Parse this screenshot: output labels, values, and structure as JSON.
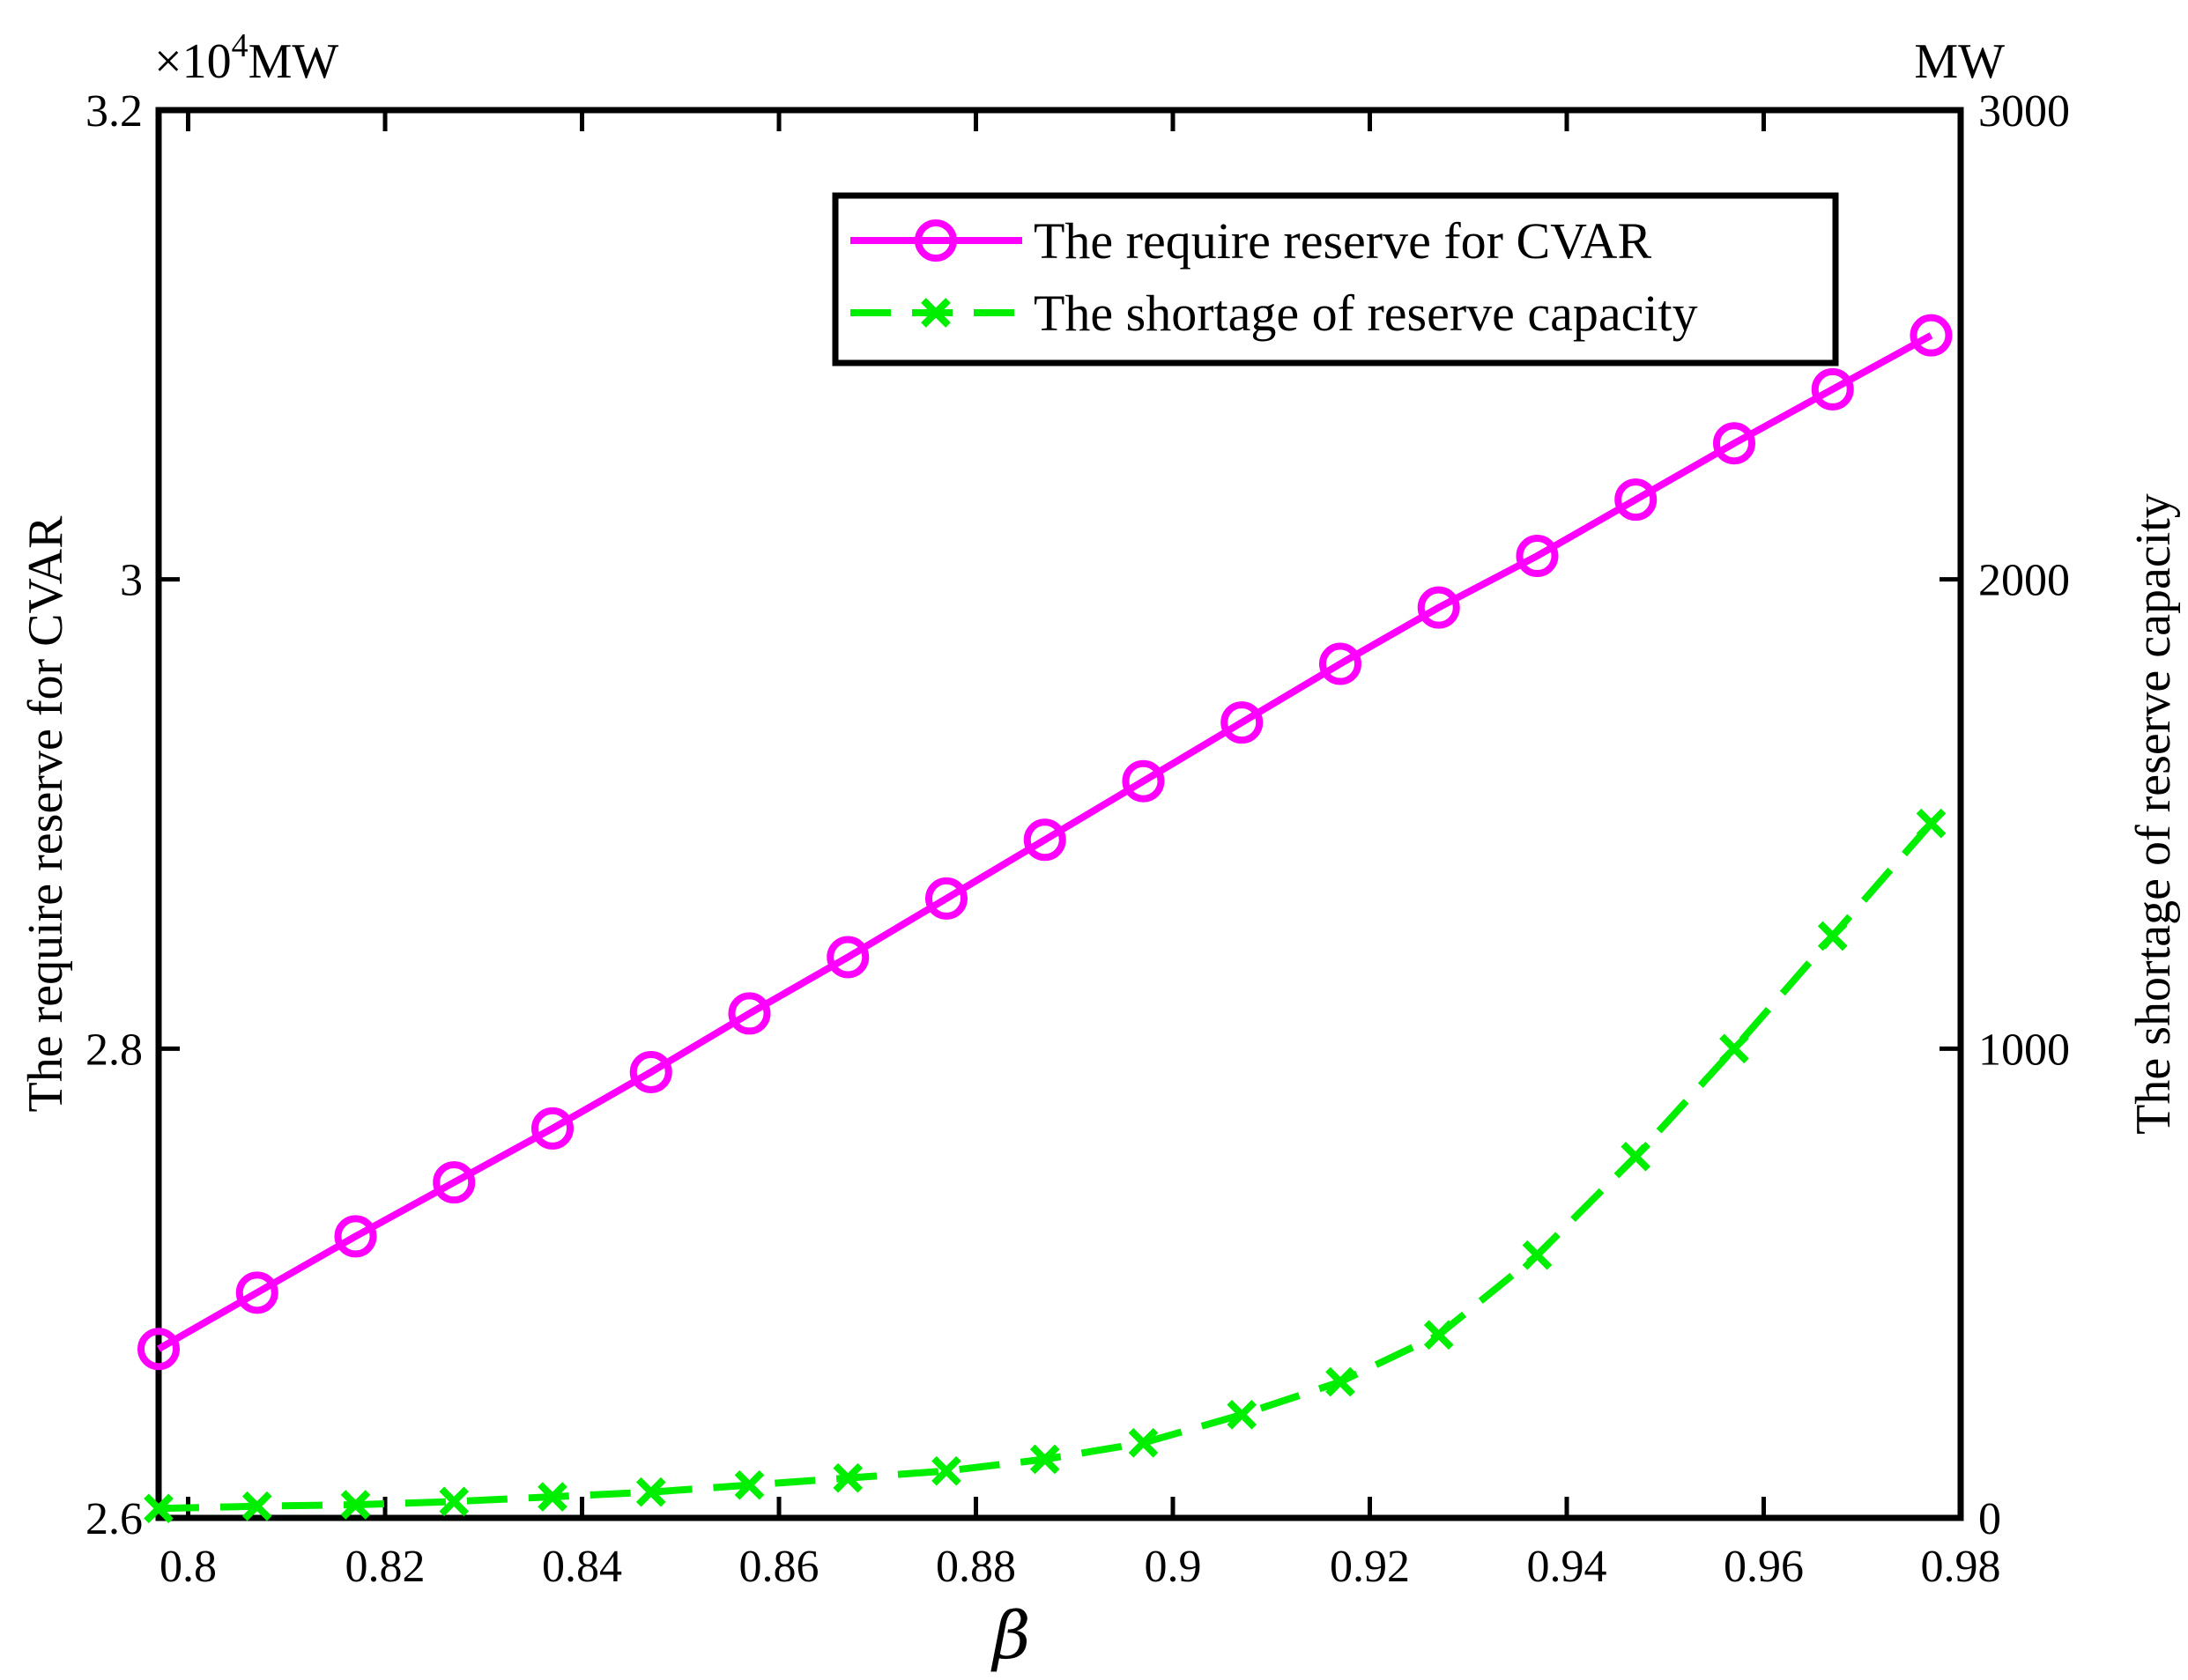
{
  "chart_data": {
    "type": "line",
    "xlabel": "β",
    "ylabel_left": "The require reserve for CVAR",
    "ylabel_right": "The shortage of reserve capacity",
    "left_unit": "MW",
    "left_exponent_prefix": "×10",
    "left_exponent": "4",
    "right_unit": "MW",
    "xlim": [
      0.797,
      0.98
    ],
    "ylim_left": [
      2.6,
      3.2
    ],
    "ylim_right": [
      0,
      3000
    ],
    "xticks": [
      0.8,
      0.82,
      0.84,
      0.86,
      0.88,
      0.9,
      0.92,
      0.94,
      0.96,
      0.98
    ],
    "xtick_labels": [
      "0.8",
      "0.82",
      "0.84",
      "0.86",
      "0.88",
      "0.9",
      "0.92",
      "0.94",
      "0.96",
      "0.98"
    ],
    "yticks_left": [
      2.6,
      2.8,
      3.0,
      3.2
    ],
    "ytick_labels_left": [
      "2.6",
      "2.8",
      "3",
      "3.2"
    ],
    "yticks_right": [
      0,
      1000,
      2000,
      3000
    ],
    "ytick_labels_right": [
      "0",
      "1000",
      "2000",
      "3000"
    ],
    "grid": false,
    "legend_position": "top-right",
    "x": [
      0.797,
      0.807,
      0.817,
      0.827,
      0.837,
      0.847,
      0.857,
      0.867,
      0.877,
      0.887,
      0.897,
      0.907,
      0.917,
      0.927,
      0.937,
      0.947,
      0.957,
      0.967,
      0.977
    ],
    "series": [
      {
        "name": "The require reserve for CVAR",
        "axis": "left",
        "color": "#ff00ff",
        "marker": "circle",
        "line_style": "solid",
        "values": [
          2.672,
          2.696,
          2.72,
          2.743,
          2.766,
          2.79,
          2.815,
          2.839,
          2.864,
          2.889,
          2.914,
          2.939,
          2.964,
          2.988,
          3.01,
          3.034,
          3.058,
          3.081,
          3.104
        ]
      },
      {
        "name": "The shortage of reserve capacity",
        "axis": "right",
        "color": "#00ee00",
        "marker": "x",
        "line_style": "dashed",
        "values": [
          20,
          25,
          28,
          35,
          45,
          55,
          70,
          85,
          100,
          125,
          160,
          220,
          290,
          390,
          560,
          770,
          1000,
          1240,
          1480
        ]
      }
    ]
  }
}
